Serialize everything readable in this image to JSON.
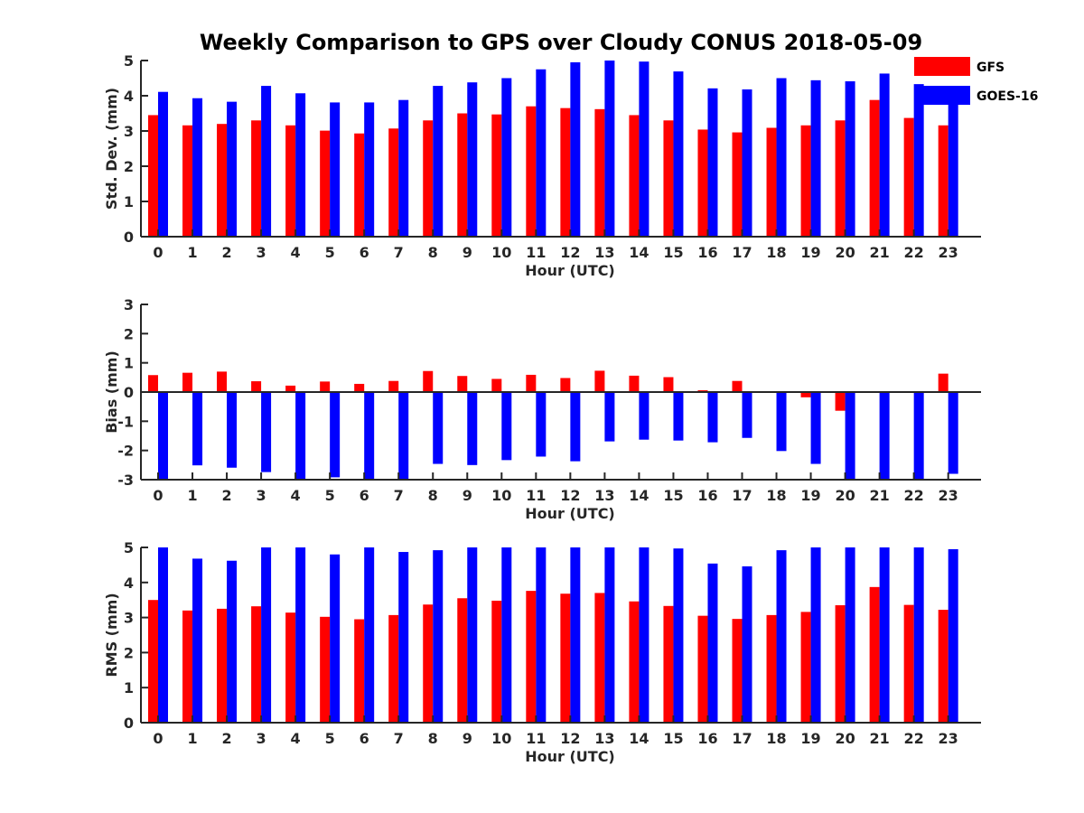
{
  "title": "Weekly Comparison to GPS over Cloudy CONUS 2018-05-09",
  "legend": {
    "placement": "top-right",
    "items": [
      {
        "name": "GFS",
        "color": "#ff0000"
      },
      {
        "name": "GOES-16",
        "color": "#0000ff"
      }
    ]
  },
  "chart_data": [
    {
      "type": "bar",
      "xlabel": "Hour (UTC)",
      "ylabel": "Std. Dev. (mm)",
      "ylim": [
        0,
        5
      ],
      "yticks": [
        "0",
        "1",
        "2",
        "3",
        "4",
        "5"
      ],
      "categories": [
        "0",
        "1",
        "2",
        "3",
        "4",
        "5",
        "6",
        "7",
        "8",
        "9",
        "10",
        "11",
        "12",
        "13",
        "14",
        "15",
        "16",
        "17",
        "18",
        "19",
        "20",
        "21",
        "22",
        "23"
      ],
      "series": [
        {
          "name": "GFS",
          "color": "#ff0000",
          "values": [
            3.45,
            3.16,
            3.2,
            3.3,
            3.16,
            3.01,
            2.93,
            3.07,
            3.3,
            3.5,
            3.47,
            3.7,
            3.65,
            3.62,
            3.45,
            3.3,
            3.04,
            2.96,
            3.09,
            3.16,
            3.3,
            3.88,
            3.37,
            3.16
          ]
        },
        {
          "name": "GOES-16",
          "color": "#0000ff",
          "values": [
            4.11,
            3.93,
            3.83,
            4.28,
            4.07,
            3.81,
            3.81,
            3.88,
            4.28,
            4.38,
            4.5,
            4.75,
            4.95,
            5.0,
            4.97,
            4.69,
            4.21,
            4.18,
            4.5,
            4.44,
            4.41,
            4.63,
            4.33,
            3.84
          ]
        }
      ]
    },
    {
      "type": "bar",
      "xlabel": "Hour (UTC)",
      "ylabel": "Bias (mm)",
      "ylim": [
        -3,
        3
      ],
      "yticks": [
        "-3",
        "-2",
        "-1",
        "0",
        "1",
        "2",
        "3"
      ],
      "categories": [
        "0",
        "1",
        "2",
        "3",
        "4",
        "5",
        "6",
        "7",
        "8",
        "9",
        "10",
        "11",
        "12",
        "13",
        "14",
        "15",
        "16",
        "17",
        "18",
        "19",
        "20",
        "21",
        "22",
        "23"
      ],
      "series": [
        {
          "name": "GFS",
          "color": "#ff0000",
          "values": [
            0.58,
            0.66,
            0.7,
            0.37,
            0.22,
            0.36,
            0.28,
            0.38,
            0.72,
            0.55,
            0.45,
            0.59,
            0.48,
            0.73,
            0.56,
            0.51,
            0.06,
            0.38,
            0.03,
            -0.18,
            -0.64,
            0.03,
            0.0,
            0.63
          ]
        },
        {
          "name": "GOES-16",
          "color": "#0000ff",
          "values": [
            -3.0,
            -2.51,
            -2.59,
            -2.74,
            -3.0,
            -2.92,
            -3.0,
            -2.97,
            -2.46,
            -2.5,
            -2.33,
            -2.21,
            -2.37,
            -1.69,
            -1.63,
            -1.66,
            -1.72,
            -1.57,
            -2.02,
            -2.46,
            -3.0,
            -3.0,
            -3.0,
            -2.8
          ]
        }
      ]
    },
    {
      "type": "bar",
      "xlabel": "Hour (UTC)",
      "ylabel": "RMS (mm)",
      "ylim": [
        0,
        5
      ],
      "yticks": [
        "0",
        "1",
        "2",
        "3",
        "4",
        "5"
      ],
      "categories": [
        "0",
        "1",
        "2",
        "3",
        "4",
        "5",
        "6",
        "7",
        "8",
        "9",
        "10",
        "11",
        "12",
        "13",
        "14",
        "15",
        "16",
        "17",
        "18",
        "19",
        "20",
        "21",
        "22",
        "23"
      ],
      "series": [
        {
          "name": "GFS",
          "color": "#ff0000",
          "values": [
            3.5,
            3.2,
            3.25,
            3.32,
            3.14,
            3.02,
            2.95,
            3.07,
            3.37,
            3.55,
            3.48,
            3.76,
            3.68,
            3.7,
            3.46,
            3.33,
            3.05,
            2.96,
            3.07,
            3.16,
            3.35,
            3.87,
            3.36,
            3.22
          ]
        },
        {
          "name": "GOES-16",
          "color": "#0000ff",
          "values": [
            5.0,
            4.68,
            4.62,
            5.0,
            5.0,
            4.8,
            5.0,
            4.87,
            4.92,
            5.0,
            5.0,
            5.0,
            5.0,
            5.0,
            5.0,
            4.97,
            4.54,
            4.46,
            4.92,
            5.0,
            5.0,
            5.0,
            5.0,
            4.95
          ]
        }
      ]
    }
  ]
}
